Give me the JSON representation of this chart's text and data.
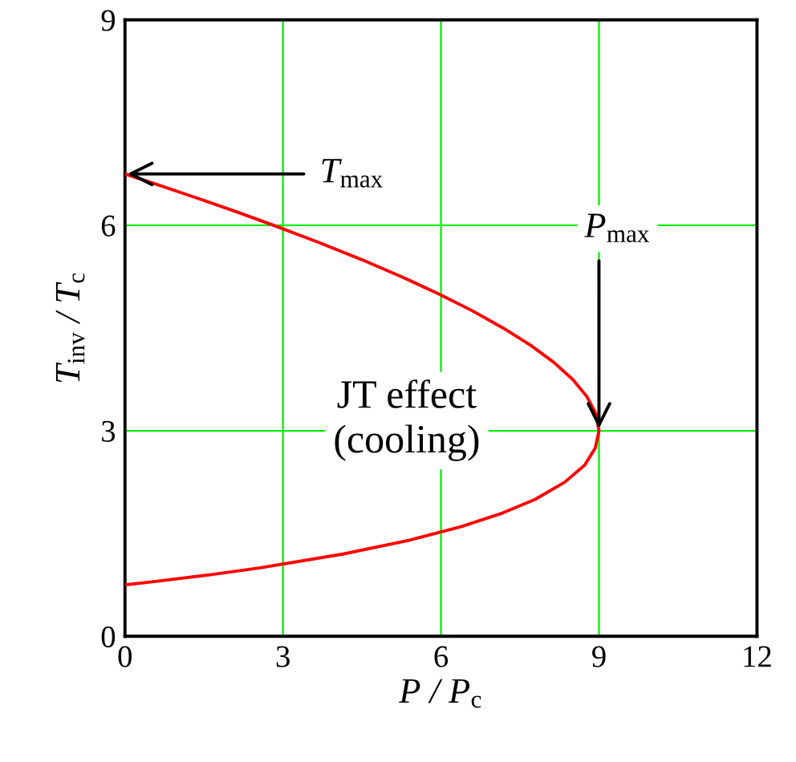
{
  "chart_data": {
    "type": "line",
    "xlabel": "P / P$_{c}$",
    "ylabel": "T$_{inv}$ / T$_{c}$",
    "xlim": [
      0,
      12
    ],
    "ylim": [
      0,
      9
    ],
    "xticks": [
      0,
      3,
      6,
      9,
      12
    ],
    "yticks": [
      0,
      3,
      6,
      9
    ],
    "grid": true,
    "series": [
      {
        "color": "#ff0000",
        "x": [
          0,
          0.58,
          1.64,
          2.57,
          4.14,
          5.39,
          6.38,
          7.17,
          7.79,
          8.35,
          8.73,
          8.93,
          9,
          8.94,
          8.77,
          8.5,
          8.14,
          7.7,
          7.18,
          6.6,
          5.95,
          5.25,
          4.49,
          3.68,
          2.82,
          2.11,
          1.36,
          0.59,
          0
        ],
        "values": [
          0.75,
          0.8,
          0.9,
          1.0,
          1.2,
          1.4,
          1.6,
          1.8,
          2.0,
          2.25,
          2.5,
          2.75,
          3.0,
          3.25,
          3.5,
          3.75,
          4.0,
          4.25,
          4.5,
          4.75,
          5.0,
          5.25,
          5.5,
          5.75,
          6.0,
          6.2,
          6.4,
          6.6,
          6.75
        ]
      }
    ],
    "annotations": [
      {
        "text": "T$_{max}$",
        "x": 0,
        "y": 6.75
      },
      {
        "text": "P$_{max}$",
        "x": 9,
        "y": 3
      },
      "JT effect\n(cooling)"
    ]
  }
}
